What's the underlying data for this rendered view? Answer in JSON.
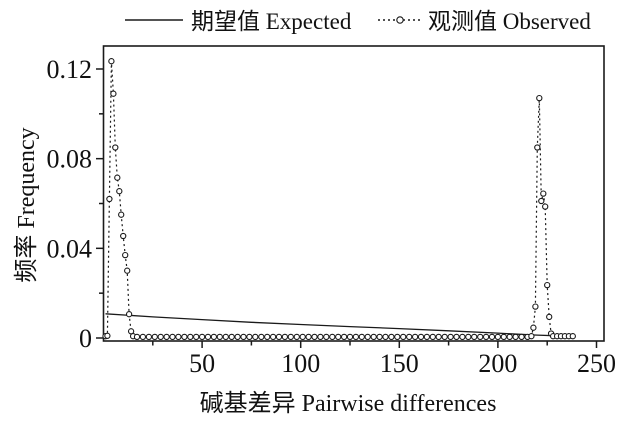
{
  "colors": {
    "line": "#1a1a1a",
    "background": "#ffffff",
    "text": "#111111"
  },
  "chart_data": {
    "type": "line",
    "title": "",
    "xlabel": "碱基差异 Pairwise differences",
    "ylabel": "频率 Frequency",
    "xlim": [
      0,
      253
    ],
    "ylim": [
      0,
      0.131
    ],
    "grid": false,
    "legend_position": "top",
    "x_major_ticks": [
      50,
      100,
      150,
      200,
      250
    ],
    "x_tick_labels": [
      "50",
      "100",
      "150",
      "200",
      "250"
    ],
    "x_minor_ticks": [
      25,
      75,
      125,
      175,
      225
    ],
    "y_major_ticks": [
      0,
      0.04,
      0.08,
      0.12
    ],
    "y_tick_labels": [
      "0",
      "0.04",
      "0.08",
      "0.12"
    ],
    "y_minor_ticks": [
      0.02,
      0.06,
      0.1
    ],
    "series": [
      {
        "name": "期望值 Expected",
        "style": "solid",
        "marker": "none",
        "points": [
          [
            1,
            0.0108
          ],
          [
            25,
            0.0094
          ],
          [
            50,
            0.0082
          ],
          [
            75,
            0.007
          ],
          [
            100,
            0.006
          ],
          [
            125,
            0.0051
          ],
          [
            150,
            0.0042
          ],
          [
            175,
            0.0032
          ],
          [
            200,
            0.0022
          ],
          [
            210,
            0.0017
          ],
          [
            220,
            0.0013
          ],
          [
            230,
            0.001
          ],
          [
            237,
            0.0008
          ]
        ]
      },
      {
        "name": "观测值 Observed",
        "style": "dashed",
        "marker": "circle",
        "points": [
          [
            1,
            0.0008
          ],
          [
            2,
            0.001
          ],
          [
            3,
            0.062
          ],
          [
            4,
            0.1235
          ],
          [
            5,
            0.109
          ],
          [
            6,
            0.085
          ],
          [
            7,
            0.0715
          ],
          [
            8,
            0.0655
          ],
          [
            9,
            0.055
          ],
          [
            10,
            0.0455
          ],
          [
            11,
            0.037
          ],
          [
            12,
            0.03
          ],
          [
            13,
            0.0106
          ],
          [
            14,
            0.003
          ],
          [
            15,
            0.0008
          ],
          [
            17,
            0.0005
          ],
          [
            20,
            0.0005
          ],
          [
            23,
            0.0005
          ],
          [
            26,
            0.0005
          ],
          [
            29,
            0.0005
          ],
          [
            32,
            0.0005
          ],
          [
            35,
            0.0005
          ],
          [
            38,
            0.0005
          ],
          [
            41,
            0.0005
          ],
          [
            44,
            0.0005
          ],
          [
            47,
            0.0005
          ],
          [
            50,
            0.0005
          ],
          [
            53,
            0.0005
          ],
          [
            56,
            0.0005
          ],
          [
            59,
            0.0005
          ],
          [
            62,
            0.0005
          ],
          [
            65,
            0.0005
          ],
          [
            68,
            0.0005
          ],
          [
            71,
            0.0005
          ],
          [
            74,
            0.0005
          ],
          [
            77,
            0.0005
          ],
          [
            80,
            0.0005
          ],
          [
            83,
            0.0005
          ],
          [
            86,
            0.0005
          ],
          [
            89,
            0.0005
          ],
          [
            92,
            0.0005
          ],
          [
            95,
            0.0005
          ],
          [
            98,
            0.0005
          ],
          [
            101,
            0.0005
          ],
          [
            104,
            0.0005
          ],
          [
            107,
            0.0005
          ],
          [
            110,
            0.0005
          ],
          [
            113,
            0.0005
          ],
          [
            116,
            0.0005
          ],
          [
            119,
            0.0005
          ],
          [
            122,
            0.0005
          ],
          [
            125,
            0.0005
          ],
          [
            128,
            0.0005
          ],
          [
            131,
            0.0005
          ],
          [
            134,
            0.0005
          ],
          [
            137,
            0.0005
          ],
          [
            140,
            0.0005
          ],
          [
            143,
            0.0005
          ],
          [
            146,
            0.0005
          ],
          [
            149,
            0.0005
          ],
          [
            152,
            0.0005
          ],
          [
            155,
            0.0005
          ],
          [
            158,
            0.0005
          ],
          [
            161,
            0.0005
          ],
          [
            164,
            0.0005
          ],
          [
            167,
            0.0005
          ],
          [
            170,
            0.0005
          ],
          [
            173,
            0.0005
          ],
          [
            176,
            0.0005
          ],
          [
            179,
            0.0005
          ],
          [
            182,
            0.0005
          ],
          [
            185,
            0.0005
          ],
          [
            188,
            0.0005
          ],
          [
            191,
            0.0005
          ],
          [
            194,
            0.0005
          ],
          [
            197,
            0.0005
          ],
          [
            200,
            0.0005
          ],
          [
            203,
            0.0005
          ],
          [
            206,
            0.0005
          ],
          [
            209,
            0.0005
          ],
          [
            212,
            0.0005
          ],
          [
            215,
            0.0005
          ],
          [
            217,
            0.0008
          ],
          [
            218,
            0.0046
          ],
          [
            219,
            0.014
          ],
          [
            220,
            0.085
          ],
          [
            221,
            0.107
          ],
          [
            222,
            0.0611
          ],
          [
            223,
            0.0644
          ],
          [
            224,
            0.0586
          ],
          [
            225,
            0.0236
          ],
          [
            226,
            0.0094
          ],
          [
            227,
            0.002
          ],
          [
            228,
            0.0008
          ],
          [
            230,
            0.0008
          ],
          [
            232,
            0.0008
          ],
          [
            234,
            0.0008
          ],
          [
            236,
            0.0008
          ],
          [
            238,
            0.0008
          ]
        ]
      }
    ]
  }
}
